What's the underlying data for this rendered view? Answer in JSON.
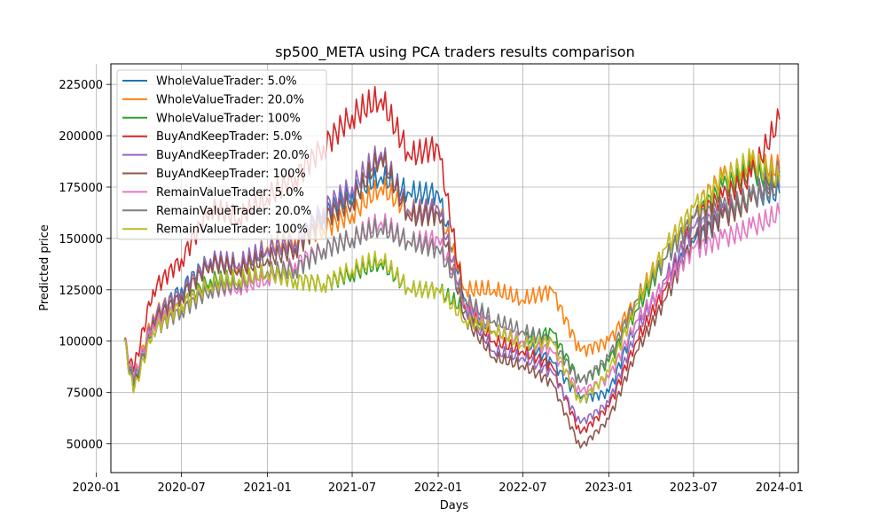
{
  "chart_data": {
    "type": "line",
    "title": "sp500_META using PCA traders results comparison",
    "xlabel": "Days",
    "ylabel": "Predicted price",
    "xlim": [
      "2020-02-01",
      "2024-02-10"
    ],
    "ylim": [
      36000,
      235000
    ],
    "x_ticks": [
      "2020-01",
      "2020-07",
      "2021-01",
      "2021-07",
      "2022-01",
      "2022-07",
      "2023-01",
      "2023-07",
      "2024-01"
    ],
    "y_ticks": [
      50000,
      75000,
      100000,
      125000,
      150000,
      175000,
      200000,
      225000
    ],
    "grid": true,
    "legend_position": "top-left",
    "x": [
      "2020-03-01",
      "2020-03-20",
      "2020-05-01",
      "2020-07-01",
      "2020-09-01",
      "2020-11-01",
      "2021-01-01",
      "2021-03-01",
      "2021-05-01",
      "2021-07-01",
      "2021-09-01",
      "2021-11-01",
      "2022-01-01",
      "2022-03-01",
      "2022-05-01",
      "2022-07-01",
      "2022-09-01",
      "2022-11-01",
      "2023-01-01",
      "2023-03-01",
      "2023-05-01",
      "2023-07-01",
      "2023-09-01",
      "2023-11-01",
      "2024-01-01"
    ],
    "series": [
      {
        "name": "WholeValueTrader: 5.0%",
        "color": "#1f77b4",
        "values": [
          100000,
          78000,
          112000,
          126000,
          140000,
          135000,
          145000,
          148000,
          162000,
          172000,
          180000,
          172000,
          172000,
          120000,
          105000,
          100000,
          90000,
          72000,
          75000,
          110000,
          128000,
          148000,
          160000,
          170000,
          172000
        ]
      },
      {
        "name": "WholeValueTrader: 20.0%",
        "color": "#ff7f0e",
        "values": [
          100000,
          80000,
          113000,
          124000,
          138000,
          136000,
          146000,
          150000,
          155000,
          162000,
          175000,
          163000,
          165000,
          125000,
          125000,
          120000,
          125000,
          95000,
          100000,
          120000,
          145000,
          165000,
          180000,
          185000,
          184000
        ]
      },
      {
        "name": "WholeValueTrader: 100%",
        "color": "#2ca02c",
        "values": [
          100000,
          76000,
          108000,
          118000,
          130000,
          130000,
          133000,
          130000,
          128000,
          133000,
          138000,
          125000,
          125000,
          115000,
          105000,
          100000,
          105000,
          80000,
          90000,
          115000,
          140000,
          160000,
          175000,
          182000,
          178000
        ]
      },
      {
        "name": "BuyAndKeepTrader: 5.0%",
        "color": "#d62728",
        "values": [
          100000,
          85000,
          125000,
          140000,
          165000,
          160000,
          170000,
          180000,
          195000,
          210000,
          218000,
          190000,
          195000,
          115000,
          100000,
          95000,
          88000,
          55000,
          68000,
          100000,
          125000,
          160000,
          170000,
          180000,
          208000
        ]
      },
      {
        "name": "BuyAndKeepTrader: 20.0%",
        "color": "#9467bd",
        "values": [
          100000,
          76000,
          112000,
          124000,
          140000,
          138000,
          145000,
          148000,
          165000,
          175000,
          192000,
          162000,
          165000,
          115000,
          95000,
          92000,
          85000,
          60000,
          70000,
          105000,
          130000,
          155000,
          162000,
          170000,
          182000
        ]
      },
      {
        "name": "BuyAndKeepTrader: 100%",
        "color": "#8c564b",
        "values": [
          100000,
          75000,
          110000,
          122000,
          138000,
          135000,
          140000,
          145000,
          160000,
          168000,
          190000,
          160000,
          162000,
          110000,
          92000,
          88000,
          80000,
          48000,
          62000,
          95000,
          120000,
          150000,
          160000,
          168000,
          180000
        ]
      },
      {
        "name": "RemainValueTrader: 5.0%",
        "color": "#e377c2",
        "values": [
          100000,
          82000,
          108000,
          118000,
          125000,
          126000,
          130000,
          138000,
          145000,
          150000,
          158000,
          148000,
          150000,
          118000,
          105000,
          100000,
          95000,
          75000,
          82000,
          110000,
          128000,
          145000,
          150000,
          155000,
          162000
        ]
      },
      {
        "name": "RemainValueTrader: 20.0%",
        "color": "#7f7f7f",
        "values": [
          100000,
          80000,
          105000,
          115000,
          125000,
          128000,
          134000,
          135000,
          145000,
          150000,
          155000,
          148000,
          145000,
          120000,
          110000,
          105000,
          100000,
          80000,
          92000,
          120000,
          140000,
          160000,
          165000,
          170000,
          175000
        ]
      },
      {
        "name": "RemainValueTrader: 100%",
        "color": "#bcbd22",
        "values": [
          100000,
          75000,
          105000,
          118000,
          128000,
          130000,
          133000,
          130000,
          128000,
          135000,
          140000,
          125000,
          125000,
          110000,
          105000,
          98000,
          100000,
          70000,
          85000,
          118000,
          145000,
          165000,
          178000,
          188000,
          178000
        ]
      }
    ]
  }
}
